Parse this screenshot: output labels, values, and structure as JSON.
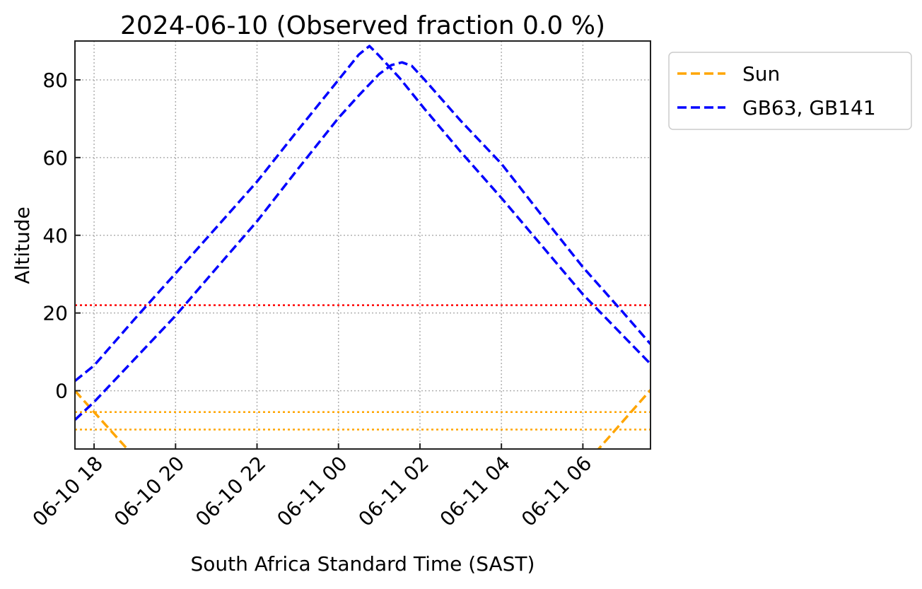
{
  "chart_data": {
    "type": "line",
    "title": "2024-06-10 (Observed fraction 0.0 %)",
    "xlabel": "South Africa Standard Time (SAST)",
    "ylabel": "Altitude",
    "x_units": "hours since 2024-06-10 00:00 SAST",
    "xlim": [
      17.53,
      31.66
    ],
    "ylim": [
      -15,
      90
    ],
    "grid": true,
    "legend_position": "outside-top-right",
    "xticks": [
      {
        "value": 18,
        "label": "06-10 18"
      },
      {
        "value": 20,
        "label": "06-10 20"
      },
      {
        "value": 22,
        "label": "06-10 22"
      },
      {
        "value": 24,
        "label": "06-11 00"
      },
      {
        "value": 26,
        "label": "06-11 02"
      },
      {
        "value": 28,
        "label": "06-11 04"
      },
      {
        "value": 30,
        "label": "06-11 06"
      }
    ],
    "yticks": [
      0,
      20,
      40,
      60,
      80
    ],
    "hlines": [
      {
        "y": 22,
        "color": "#ff0000",
        "style": "dotted"
      },
      {
        "y": -5.5,
        "color": "#ffa500",
        "style": "dotted"
      },
      {
        "y": -10,
        "color": "#ffa500",
        "style": "dotted"
      }
    ],
    "legend": [
      {
        "label": "Sun",
        "color": "#ffa500"
      },
      {
        "label": "GB63, GB141",
        "color": "#0000ff"
      }
    ],
    "series": [
      {
        "name": "Sun",
        "color": "#ffa500",
        "x": [
          17.53,
          18,
          18.9,
          30.3,
          31.66
        ],
        "y": [
          0,
          -5.5,
          -16,
          -16,
          0.2
        ]
      },
      {
        "name": "GB63, GB141 (a)",
        "color": "#0000ff",
        "x": [
          17.53,
          18,
          19,
          20,
          21,
          22,
          23,
          24,
          24.5,
          24.76,
          25,
          25.5,
          26,
          26.1,
          27,
          28,
          29,
          30,
          31,
          31.66
        ],
        "y": [
          2.5,
          6.5,
          18.5,
          30.2,
          42,
          53.8,
          67,
          80,
          86.5,
          88.7,
          86.2,
          80.5,
          74,
          72.7,
          61.5,
          49.6,
          37.2,
          24.8,
          14,
          6.9
        ]
      },
      {
        "name": "GB63, GB141 (b)",
        "color": "#0000ff",
        "x": [
          17.53,
          18,
          19,
          20,
          21,
          22,
          23,
          24,
          24.5,
          25,
          25.3,
          25.56,
          25.8,
          26.1,
          27,
          28,
          29,
          30,
          31,
          31.66
        ],
        "y": [
          -7.5,
          -2.9,
          8.2,
          19.3,
          31.5,
          43.6,
          57,
          70.2,
          76,
          81.5,
          83.8,
          84.5,
          83.6,
          80.2,
          69.5,
          58.4,
          45,
          31.8,
          20,
          12
        ]
      }
    ]
  }
}
